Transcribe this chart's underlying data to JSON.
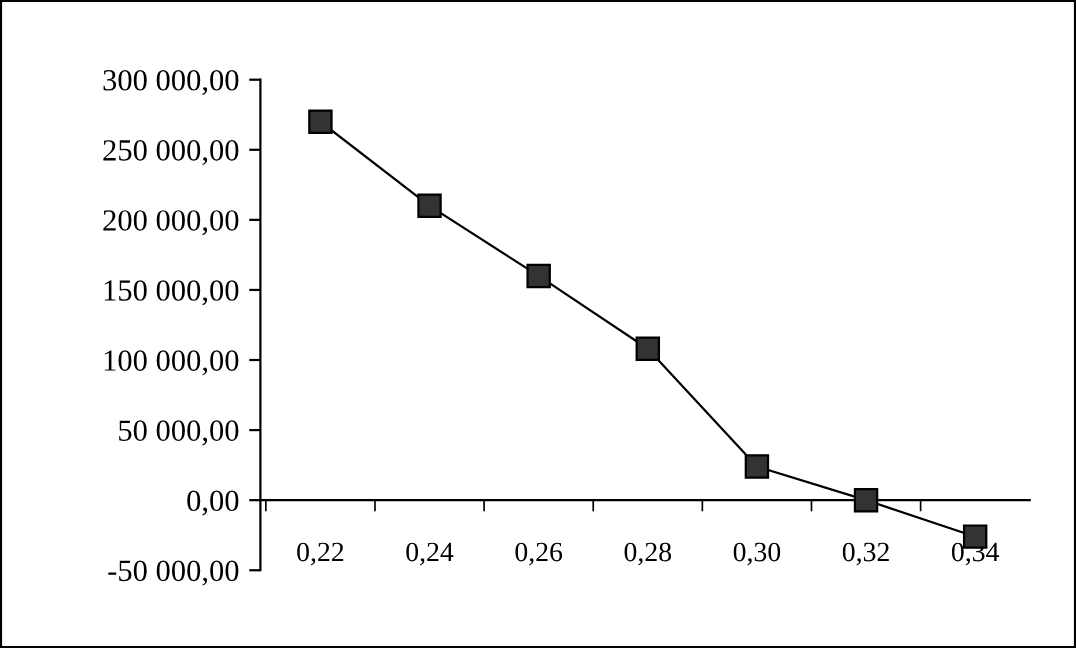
{
  "chart_data": {
    "type": "line",
    "categories": [
      "0,22",
      "0,24",
      "0,26",
      "0,28",
      "0,30",
      "0,32",
      "0,34"
    ],
    "series": [
      {
        "color": "#333333",
        "values": [
          270000,
          210000,
          160000,
          108000,
          24000,
          0,
          -26000
        ]
      }
    ],
    "ylim": [
      -50000,
      300000
    ],
    "yticks": [
      {
        "value": -50000,
        "label": "-50 000,00"
      },
      {
        "value": 0,
        "label": "0,00"
      },
      {
        "value": 50000,
        "label": "50 000,00"
      },
      {
        "value": 100000,
        "label": "100 000,00"
      },
      {
        "value": 150000,
        "label": "150 000,00"
      },
      {
        "value": 200000,
        "label": "200 000,00"
      },
      {
        "value": 250000,
        "label": "250 000,00"
      },
      {
        "value": 300000,
        "label": "300 000,00"
      }
    ],
    "marker": "square",
    "line_style": "solid",
    "grid": false,
    "legend": false
  }
}
